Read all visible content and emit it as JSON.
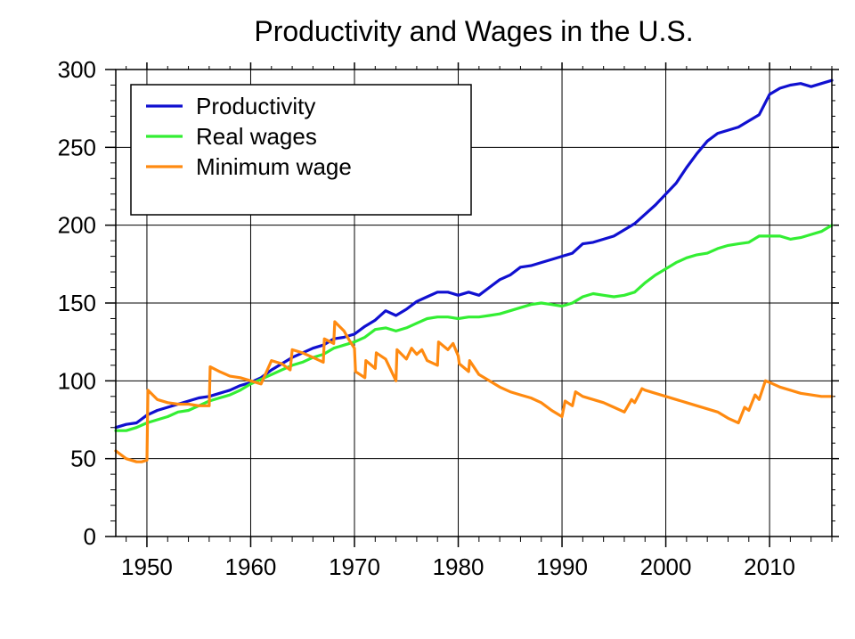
{
  "chart_data": {
    "type": "line",
    "title": "Productivity and Wages in the U.S.",
    "xlabel": "",
    "ylabel": "",
    "xlim": [
      1947,
      2016
    ],
    "ylim": [
      0,
      300
    ],
    "x_ticks": [
      1950,
      1960,
      1970,
      1980,
      1990,
      2000,
      2010
    ],
    "y_ticks": [
      0,
      50,
      100,
      150,
      200,
      250,
      300
    ],
    "grid": true,
    "legend_position": "top-left",
    "series": [
      {
        "name": "Productivity",
        "color": "#1010d0",
        "points": [
          [
            1947,
            70
          ],
          [
            1948,
            72
          ],
          [
            1949,
            73
          ],
          [
            1950,
            78
          ],
          [
            1951,
            81
          ],
          [
            1952,
            83
          ],
          [
            1953,
            85
          ],
          [
            1954,
            87
          ],
          [
            1955,
            89
          ],
          [
            1956,
            90
          ],
          [
            1957,
            92
          ],
          [
            1958,
            94
          ],
          [
            1959,
            97
          ],
          [
            1960,
            99
          ],
          [
            1961,
            102
          ],
          [
            1962,
            107
          ],
          [
            1963,
            111
          ],
          [
            1964,
            115
          ],
          [
            1965,
            118
          ],
          [
            1966,
            121
          ],
          [
            1967,
            123
          ],
          [
            1968,
            127
          ],
          [
            1969,
            128
          ],
          [
            1970,
            130
          ],
          [
            1971,
            135
          ],
          [
            1972,
            139
          ],
          [
            1973,
            145
          ],
          [
            1974,
            142
          ],
          [
            1975,
            146
          ],
          [
            1976,
            151
          ],
          [
            1977,
            154
          ],
          [
            1978,
            157
          ],
          [
            1979,
            157
          ],
          [
            1980,
            155
          ],
          [
            1981,
            157
          ],
          [
            1982,
            155
          ],
          [
            1983,
            160
          ],
          [
            1984,
            165
          ],
          [
            1985,
            168
          ],
          [
            1986,
            173
          ],
          [
            1987,
            174
          ],
          [
            1988,
            176
          ],
          [
            1989,
            178
          ],
          [
            1990,
            180
          ],
          [
            1991,
            182
          ],
          [
            1992,
            188
          ],
          [
            1993,
            189
          ],
          [
            1994,
            191
          ],
          [
            1995,
            193
          ],
          [
            1996,
            197
          ],
          [
            1997,
            201
          ],
          [
            1998,
            207
          ],
          [
            1999,
            213
          ],
          [
            2000,
            220
          ],
          [
            2001,
            227
          ],
          [
            2002,
            237
          ],
          [
            2003,
            246
          ],
          [
            2004,
            254
          ],
          [
            2005,
            259
          ],
          [
            2006,
            261
          ],
          [
            2007,
            263
          ],
          [
            2008,
            267
          ],
          [
            2009,
            271
          ],
          [
            2010,
            284
          ],
          [
            2011,
            288
          ],
          [
            2012,
            290
          ],
          [
            2013,
            291
          ],
          [
            2014,
            289
          ],
          [
            2015,
            291
          ],
          [
            2016,
            293
          ]
        ]
      },
      {
        "name": "Real wages",
        "color": "#33ee33",
        "points": [
          [
            1947,
            68
          ],
          [
            1948,
            68
          ],
          [
            1949,
            70
          ],
          [
            1950,
            73
          ],
          [
            1951,
            75
          ],
          [
            1952,
            77
          ],
          [
            1953,
            80
          ],
          [
            1954,
            81
          ],
          [
            1955,
            84
          ],
          [
            1956,
            87
          ],
          [
            1957,
            89
          ],
          [
            1958,
            91
          ],
          [
            1959,
            94
          ],
          [
            1960,
            98
          ],
          [
            1961,
            101
          ],
          [
            1962,
            104
          ],
          [
            1963,
            107
          ],
          [
            1964,
            110
          ],
          [
            1965,
            112
          ],
          [
            1966,
            115
          ],
          [
            1967,
            117
          ],
          [
            1968,
            121
          ],
          [
            1969,
            123
          ],
          [
            1970,
            125
          ],
          [
            1971,
            128
          ],
          [
            1972,
            133
          ],
          [
            1973,
            134
          ],
          [
            1974,
            132
          ],
          [
            1975,
            134
          ],
          [
            1976,
            137
          ],
          [
            1977,
            140
          ],
          [
            1978,
            141
          ],
          [
            1979,
            141
          ],
          [
            1980,
            140
          ],
          [
            1981,
            141
          ],
          [
            1982,
            141
          ],
          [
            1983,
            142
          ],
          [
            1984,
            143
          ],
          [
            1985,
            145
          ],
          [
            1986,
            147
          ],
          [
            1987,
            149
          ],
          [
            1988,
            150
          ],
          [
            1989,
            149
          ],
          [
            1990,
            148
          ],
          [
            1991,
            150
          ],
          [
            1992,
            154
          ],
          [
            1993,
            156
          ],
          [
            1994,
            155
          ],
          [
            1995,
            154
          ],
          [
            1996,
            155
          ],
          [
            1997,
            157
          ],
          [
            1998,
            163
          ],
          [
            1999,
            168
          ],
          [
            2000,
            172
          ],
          [
            2001,
            176
          ],
          [
            2002,
            179
          ],
          [
            2003,
            181
          ],
          [
            2004,
            182
          ],
          [
            2005,
            185
          ],
          [
            2006,
            187
          ],
          [
            2007,
            188
          ],
          [
            2008,
            189
          ],
          [
            2009,
            193
          ],
          [
            2010,
            193
          ],
          [
            2011,
            193
          ],
          [
            2012,
            191
          ],
          [
            2013,
            192
          ],
          [
            2014,
            194
          ],
          [
            2015,
            196
          ],
          [
            2016,
            200
          ]
        ]
      },
      {
        "name": "Minimum wage",
        "color": "#ff8a10",
        "points": [
          [
            1947,
            55
          ],
          [
            1948,
            50
          ],
          [
            1949,
            48
          ],
          [
            1949.5,
            48
          ],
          [
            1950,
            49
          ],
          [
            1950.1,
            94
          ],
          [
            1951,
            88
          ],
          [
            1952,
            86
          ],
          [
            1953,
            85
          ],
          [
            1954,
            85
          ],
          [
            1955,
            84
          ],
          [
            1956,
            84
          ],
          [
            1956.1,
            109
          ],
          [
            1957,
            106
          ],
          [
            1958,
            103
          ],
          [
            1959,
            102
          ],
          [
            1960,
            100
          ],
          [
            1961,
            98
          ],
          [
            1961.8,
            110
          ],
          [
            1962,
            113
          ],
          [
            1963,
            111
          ],
          [
            1963.8,
            107
          ],
          [
            1964,
            120
          ],
          [
            1965,
            118
          ],
          [
            1966,
            115
          ],
          [
            1967,
            112
          ],
          [
            1967.1,
            127
          ],
          [
            1968,
            124
          ],
          [
            1968.1,
            138
          ],
          [
            1969,
            132
          ],
          [
            1969.5,
            126
          ],
          [
            1970,
            121
          ],
          [
            1970.1,
            106
          ],
          [
            1971,
            102
          ],
          [
            1971.1,
            113
          ],
          [
            1972,
            108
          ],
          [
            1972.1,
            118
          ],
          [
            1973,
            114
          ],
          [
            1974,
            100
          ],
          [
            1974.1,
            120
          ],
          [
            1975,
            114
          ],
          [
            1975.5,
            121
          ],
          [
            1976,
            117
          ],
          [
            1976.5,
            120
          ],
          [
            1977,
            113
          ],
          [
            1978,
            110
          ],
          [
            1978.1,
            125
          ],
          [
            1979,
            120
          ],
          [
            1979.5,
            124
          ],
          [
            1980,
            116
          ],
          [
            1980.1,
            111
          ],
          [
            1981,
            106
          ],
          [
            1981.1,
            113
          ],
          [
            1982,
            104
          ],
          [
            1983,
            100
          ],
          [
            1984,
            96
          ],
          [
            1985,
            93
          ],
          [
            1986,
            91
          ],
          [
            1987,
            89
          ],
          [
            1988,
            86
          ],
          [
            1989,
            81
          ],
          [
            1990,
            77
          ],
          [
            1990.3,
            87
          ],
          [
            1991,
            84
          ],
          [
            1991.3,
            93
          ],
          [
            1992,
            90
          ],
          [
            1993,
            88
          ],
          [
            1994,
            86
          ],
          [
            1995,
            83
          ],
          [
            1996,
            80
          ],
          [
            1996.7,
            88
          ],
          [
            1997,
            86
          ],
          [
            1997.7,
            95
          ],
          [
            1998,
            94
          ],
          [
            1999,
            92
          ],
          [
            2000,
            90
          ],
          [
            2001,
            88
          ],
          [
            2002,
            86
          ],
          [
            2003,
            84
          ],
          [
            2004,
            82
          ],
          [
            2005,
            80
          ],
          [
            2006,
            76
          ],
          [
            2007,
            73
          ],
          [
            2007.6,
            83
          ],
          [
            2008,
            81
          ],
          [
            2008.6,
            91
          ],
          [
            2009,
            88
          ],
          [
            2009.6,
            100
          ],
          [
            2010,
            99
          ],
          [
            2011,
            96
          ],
          [
            2012,
            94
          ],
          [
            2013,
            92
          ],
          [
            2014,
            91
          ],
          [
            2015,
            90
          ],
          [
            2016,
            90
          ]
        ]
      }
    ]
  }
}
